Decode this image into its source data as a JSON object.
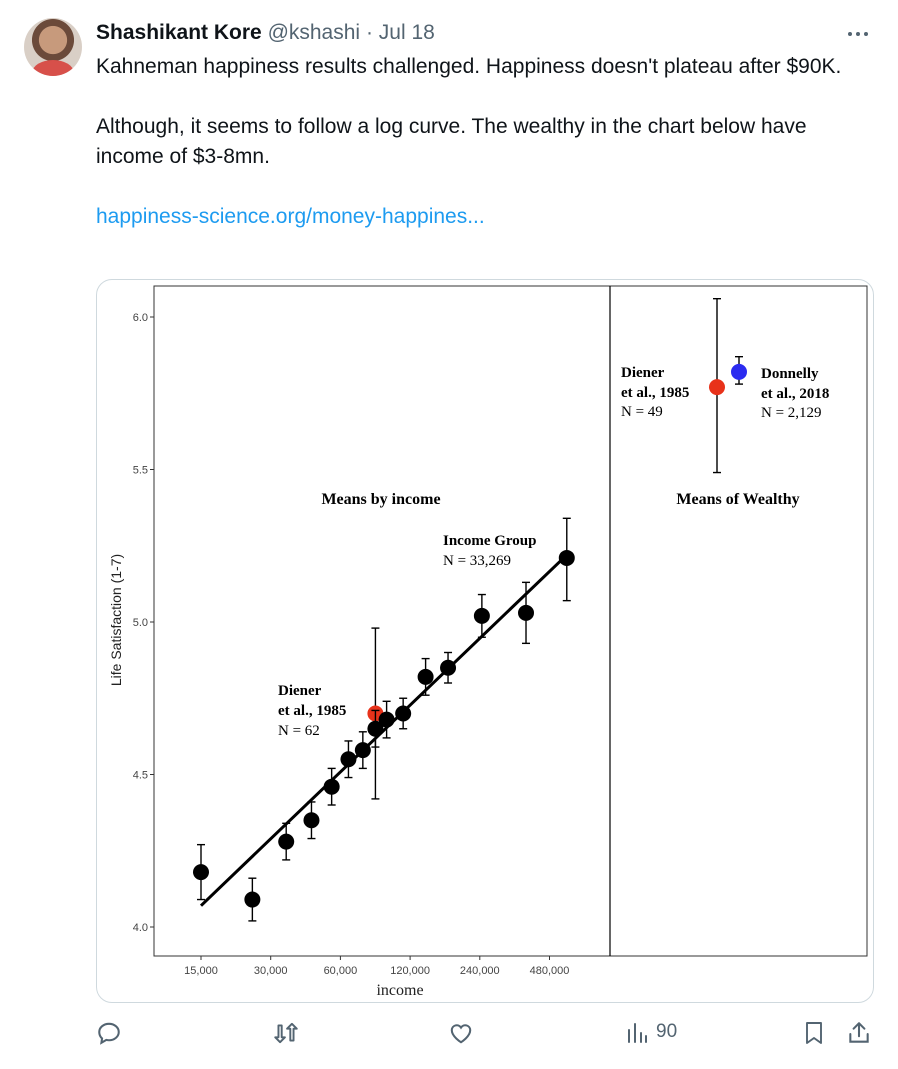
{
  "tweet": {
    "author_name": "Shashikant Kore",
    "handle": "@kshashi",
    "separator": "·",
    "date": "Jul 18",
    "more_icon": "more-horizontal-icon",
    "text_line1": "Kahneman happiness results challenged. Happiness doesn't plateau after $90K.",
    "text_line2": "Although, it seems to follow a log curve. The wealthy in the chart below have income of $3-8mn.",
    "link_text": "happiness-science.org/money-happines..."
  },
  "actions": {
    "reply_icon": "reply-icon",
    "retweet_icon": "retweet-icon",
    "like_icon": "heart-icon",
    "views_icon": "views-icon",
    "views_count": "90",
    "bookmark_icon": "bookmark-icon",
    "share_icon": "share-icon"
  },
  "chart_data": {
    "type": "scatter",
    "ylabel": "Life Satisfaction (1-7)",
    "xlabel": "income",
    "ylim": [
      3.9,
      6.1
    ],
    "y_ticks": [
      4.0,
      4.5,
      5.0,
      5.5,
      6.0
    ],
    "y_tick_labels": [
      "4.0",
      "4.5",
      "5.0",
      "5.5",
      "6.0"
    ],
    "x_scale": "log",
    "x_ticks": [
      15000,
      30000,
      60000,
      120000,
      240000,
      480000
    ],
    "x_tick_labels": [
      "15,000",
      "30,000",
      "60,000",
      "120,000",
      "240,000",
      "480,000"
    ],
    "panel_income_title": "Means by income",
    "panel_wealthy_title": "Means of Wealthy",
    "series": [
      {
        "name": "Income Group",
        "label_lines": [
          "Income Group",
          "N = 33,269"
        ],
        "color": "#000000",
        "points": [
          {
            "x": 15000,
            "y": 4.18,
            "err_low": 4.09,
            "err_high": 4.27
          },
          {
            "x": 25000,
            "y": 4.09,
            "err_low": 4.02,
            "err_high": 4.16
          },
          {
            "x": 35000,
            "y": 4.28,
            "err_low": 4.22,
            "err_high": 4.34
          },
          {
            "x": 45000,
            "y": 4.35,
            "err_low": 4.29,
            "err_high": 4.41
          },
          {
            "x": 55000,
            "y": 4.46,
            "err_low": 4.4,
            "err_high": 4.52
          },
          {
            "x": 65000,
            "y": 4.55,
            "err_low": 4.49,
            "err_high": 4.61
          },
          {
            "x": 75000,
            "y": 4.58,
            "err_low": 4.52,
            "err_high": 4.64
          },
          {
            "x": 85000,
            "y": 4.65,
            "err_low": 4.59,
            "err_high": 4.71
          },
          {
            "x": 95000,
            "y": 4.68,
            "err_low": 4.62,
            "err_high": 4.74
          },
          {
            "x": 112000,
            "y": 4.7,
            "err_low": 4.65,
            "err_high": 4.75
          },
          {
            "x": 140000,
            "y": 4.82,
            "err_low": 4.76,
            "err_high": 4.88
          },
          {
            "x": 175000,
            "y": 4.85,
            "err_low": 4.8,
            "err_high": 4.9
          },
          {
            "x": 245000,
            "y": 5.02,
            "err_low": 4.95,
            "err_high": 5.09
          },
          {
            "x": 380000,
            "y": 5.03,
            "err_low": 4.93,
            "err_high": 5.13
          },
          {
            "x": 570000,
            "y": 5.21,
            "err_low": 5.07,
            "err_high": 5.34
          }
        ]
      },
      {
        "name": "Diener et al., 1985",
        "label_lines": [
          "Diener",
          "et al., 1985",
          "N = 62"
        ],
        "color": "#e8321a",
        "points": [
          {
            "x": 85000,
            "y": 4.7,
            "err_low": 4.42,
            "err_high": 4.98
          }
        ]
      }
    ],
    "trend_line": {
      "x_start": 15000,
      "y_start": 4.07,
      "x_end": 570000,
      "y_end": 5.22
    },
    "wealthy": [
      {
        "name": "Diener et al., 1985",
        "label_lines": [
          "Diener",
          "et al., 1985",
          "N = 49"
        ],
        "color": "#e8321a",
        "y": 5.77,
        "err_low": 5.49,
        "err_high": 6.06
      },
      {
        "name": "Donnelly et al., 2018",
        "label_lines": [
          "Donnelly",
          "et al., 2018",
          "N = 2,129"
        ],
        "color": "#2b2bf0",
        "y": 5.82,
        "err_low": 5.78,
        "err_high": 5.87
      }
    ],
    "grid": false,
    "legend": "none"
  }
}
